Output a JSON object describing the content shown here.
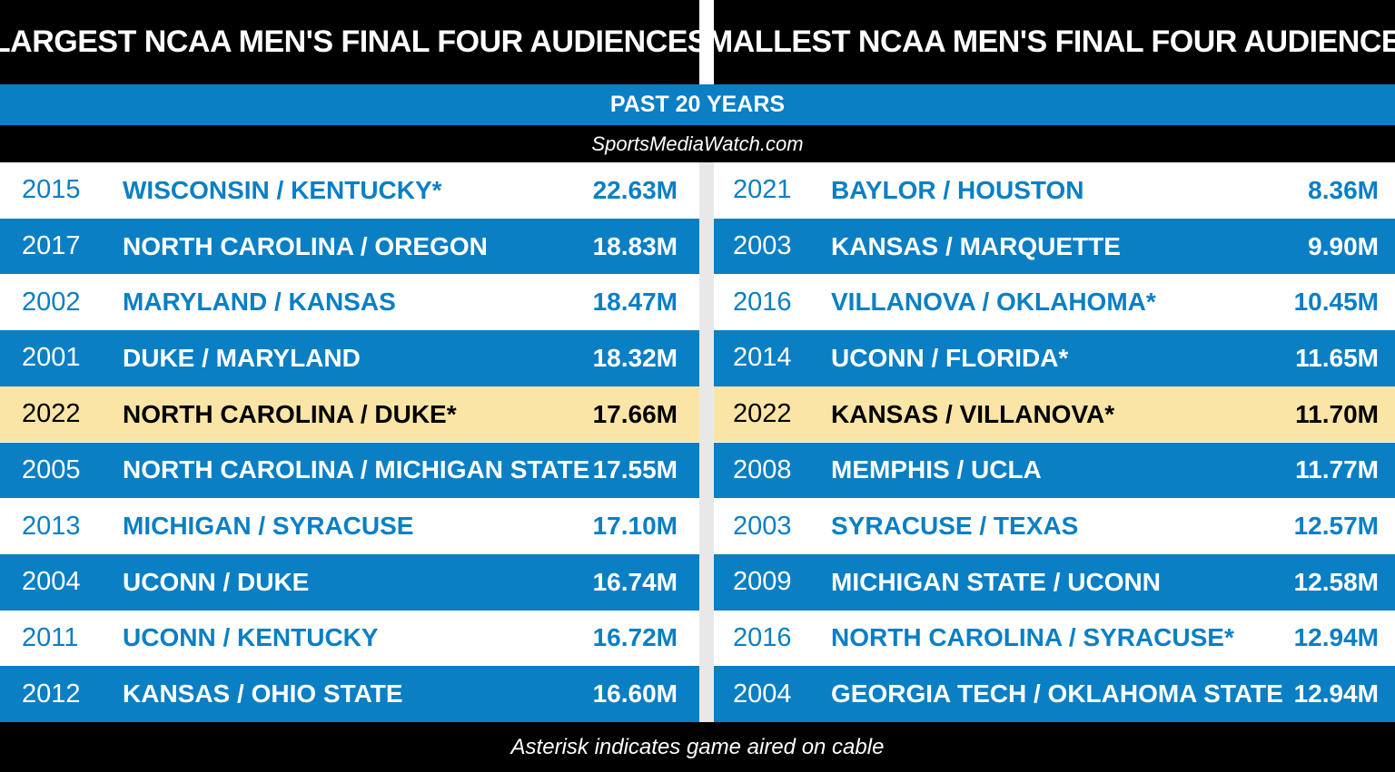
{
  "header": {
    "left_title": "LARGEST NCAA MEN'S FINAL FOUR AUDIENCES",
    "right_title": "SMALLEST NCAA MEN'S FINAL FOUR AUDIENCES",
    "subtitle": "PAST 20 YEARS",
    "source": "SportsMediaWatch.com"
  },
  "colors": {
    "black": "#000000",
    "blue": "#0a7fc4",
    "highlight": "#fbe5a6",
    "white": "#ffffff"
  },
  "largest": [
    {
      "year": "2015",
      "matchup": "WISCONSIN / KENTUCKY*",
      "viewers": "22.63M",
      "style": "white"
    },
    {
      "year": "2017",
      "matchup": "NORTH CAROLINA / OREGON",
      "viewers": "18.83M",
      "style": "blue"
    },
    {
      "year": "2002",
      "matchup": "MARYLAND / KANSAS",
      "viewers": "18.47M",
      "style": "white"
    },
    {
      "year": "2001",
      "matchup": "DUKE / MARYLAND",
      "viewers": "18.32M",
      "style": "blue"
    },
    {
      "year": "2022",
      "matchup": "NORTH CAROLINA / DUKE*",
      "viewers": "17.66M",
      "style": "highlight"
    },
    {
      "year": "2005",
      "matchup": "NORTH CAROLINA / MICHIGAN STATE",
      "viewers": "17.55M",
      "style": "blue"
    },
    {
      "year": "2013",
      "matchup": "MICHIGAN / SYRACUSE",
      "viewers": "17.10M",
      "style": "white"
    },
    {
      "year": "2004",
      "matchup": "UCONN / DUKE",
      "viewers": "16.74M",
      "style": "blue"
    },
    {
      "year": "2011",
      "matchup": "UCONN / KENTUCKY",
      "viewers": "16.72M",
      "style": "white"
    },
    {
      "year": "2012",
      "matchup": "KANSAS / OHIO STATE",
      "viewers": "16.60M",
      "style": "blue"
    }
  ],
  "smallest": [
    {
      "year": "2021",
      "matchup": "BAYLOR / HOUSTON",
      "viewers": "8.36M",
      "style": "white"
    },
    {
      "year": "2003",
      "matchup": "KANSAS / MARQUETTE",
      "viewers": "9.90M",
      "style": "blue"
    },
    {
      "year": "2016",
      "matchup": "VILLANOVA / OKLAHOMA*",
      "viewers": "10.45M",
      "style": "white"
    },
    {
      "year": "2014",
      "matchup": "UCONN / FLORIDA*",
      "viewers": "11.65M",
      "style": "blue"
    },
    {
      "year": "2022",
      "matchup": "KANSAS / VILLANOVA*",
      "viewers": "11.70M",
      "style": "highlight"
    },
    {
      "year": "2008",
      "matchup": "MEMPHIS / UCLA",
      "viewers": "11.77M",
      "style": "blue"
    },
    {
      "year": "2003",
      "matchup": "SYRACUSE / TEXAS",
      "viewers": "12.57M",
      "style": "white"
    },
    {
      "year": "2009",
      "matchup": "MICHIGAN STATE / UCONN",
      "viewers": "12.58M",
      "style": "blue"
    },
    {
      "year": "2016",
      "matchup": "NORTH CAROLINA / SYRACUSE*",
      "viewers": "12.94M",
      "style": "white"
    },
    {
      "year": "2004",
      "matchup": "GEORGIA TECH / OKLAHOMA STATE",
      "viewers": "12.94M",
      "style": "blue"
    }
  ],
  "footer": {
    "note": "Asterisk indicates game aired on cable"
  }
}
